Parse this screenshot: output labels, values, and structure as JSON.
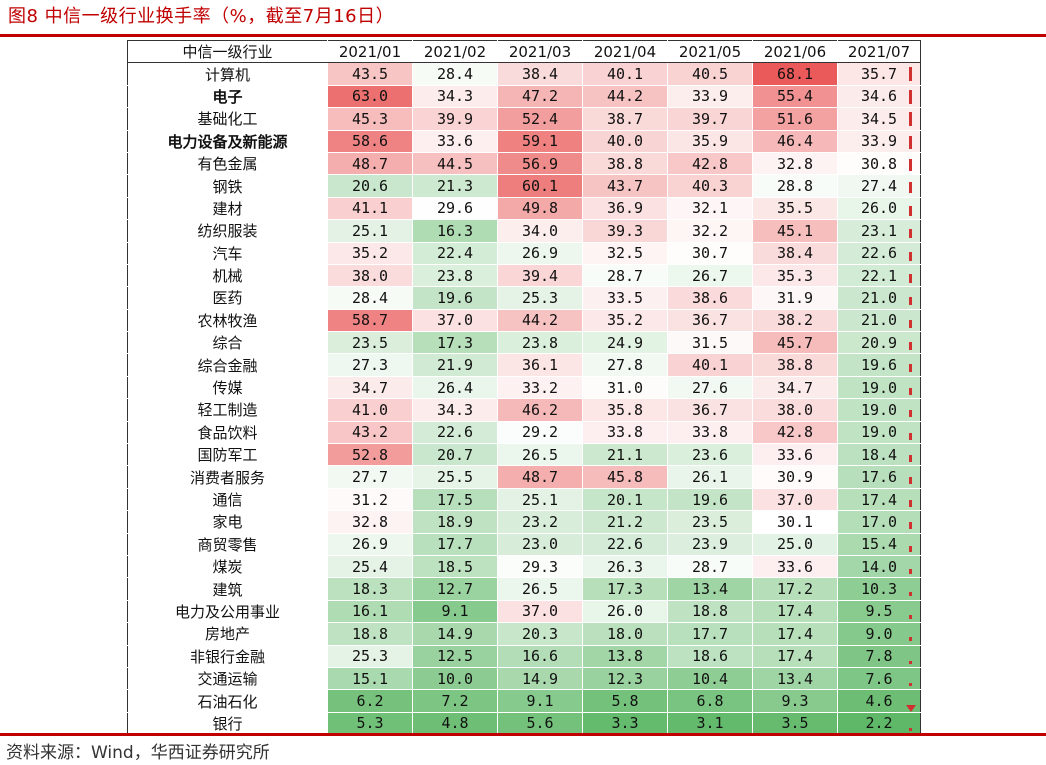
{
  "header": {
    "title": "图8 中信一级行业换手率（%，截至7月16日）"
  },
  "footer": {
    "source": "资料来源：Wind，华西证券研究所"
  },
  "colors": {
    "accent": "#c00000",
    "high": "#ea5a5a",
    "mid": "#ffffff",
    "low": "#5fb867",
    "bar": "#d03030"
  },
  "chart_data": {
    "type": "heatmap",
    "title": "图8 中信一级行业换手率（%，截至7月16日）",
    "row_header": "中信一级行业",
    "columns": [
      "2021/01",
      "2021/02",
      "2021/03",
      "2021/04",
      "2021/05",
      "2021/06",
      "2021/07"
    ],
    "rows": [
      {
        "name": "计算机",
        "bold": false,
        "values": [
          43.5,
          28.4,
          38.4,
          40.1,
          40.5,
          68.1,
          35.7
        ]
      },
      {
        "name": "电子",
        "bold": true,
        "values": [
          63.0,
          34.3,
          47.2,
          44.2,
          33.9,
          55.4,
          34.6
        ]
      },
      {
        "name": "基础化工",
        "bold": false,
        "values": [
          45.3,
          39.9,
          52.4,
          38.7,
          39.7,
          51.6,
          34.5
        ]
      },
      {
        "name": "电力设备及新能源",
        "bold": true,
        "values": [
          58.6,
          33.6,
          59.1,
          40.0,
          35.9,
          46.4,
          33.9
        ]
      },
      {
        "name": "有色金属",
        "bold": false,
        "values": [
          48.7,
          44.5,
          56.9,
          38.8,
          42.8,
          32.8,
          30.8
        ]
      },
      {
        "name": "钢铁",
        "bold": false,
        "values": [
          20.6,
          21.3,
          60.1,
          43.7,
          40.3,
          28.8,
          27.4
        ]
      },
      {
        "name": "建材",
        "bold": false,
        "values": [
          41.1,
          29.6,
          49.8,
          36.9,
          32.1,
          35.5,
          26.0
        ]
      },
      {
        "name": "纺织服装",
        "bold": false,
        "values": [
          25.1,
          16.3,
          34.0,
          39.3,
          32.2,
          45.1,
          23.1
        ]
      },
      {
        "name": "汽车",
        "bold": false,
        "values": [
          35.2,
          22.4,
          26.9,
          32.5,
          30.7,
          38.4,
          22.6
        ]
      },
      {
        "name": "机械",
        "bold": false,
        "values": [
          38.0,
          23.8,
          39.4,
          28.7,
          26.7,
          35.3,
          22.1
        ]
      },
      {
        "name": "医药",
        "bold": false,
        "values": [
          28.4,
          19.6,
          25.3,
          33.5,
          38.6,
          31.9,
          21.0
        ]
      },
      {
        "name": "农林牧渔",
        "bold": false,
        "values": [
          58.7,
          37.0,
          44.2,
          35.2,
          36.7,
          38.2,
          21.0
        ]
      },
      {
        "name": "综合",
        "bold": false,
        "values": [
          23.5,
          17.3,
          23.8,
          24.9,
          31.5,
          45.7,
          20.9
        ]
      },
      {
        "name": "综合金融",
        "bold": false,
        "values": [
          27.3,
          21.9,
          36.1,
          27.8,
          40.1,
          38.8,
          19.6
        ]
      },
      {
        "name": "传媒",
        "bold": false,
        "values": [
          34.7,
          26.4,
          33.2,
          31.0,
          27.6,
          34.7,
          19.0
        ]
      },
      {
        "name": "轻工制造",
        "bold": false,
        "values": [
          41.0,
          34.3,
          46.2,
          35.8,
          36.7,
          38.0,
          19.0
        ]
      },
      {
        "name": "食品饮料",
        "bold": false,
        "values": [
          43.2,
          22.6,
          29.2,
          33.8,
          33.8,
          42.8,
          19.0
        ]
      },
      {
        "name": "国防军工",
        "bold": false,
        "values": [
          52.8,
          20.7,
          26.5,
          21.1,
          23.6,
          33.6,
          18.4
        ]
      },
      {
        "name": "消费者服务",
        "bold": false,
        "values": [
          27.7,
          25.5,
          48.7,
          45.8,
          26.1,
          30.9,
          17.6
        ]
      },
      {
        "name": "通信",
        "bold": false,
        "values": [
          31.2,
          17.5,
          25.1,
          20.1,
          19.6,
          37.0,
          17.4
        ]
      },
      {
        "name": "家电",
        "bold": false,
        "values": [
          32.8,
          18.9,
          23.2,
          21.2,
          23.5,
          30.1,
          17.0
        ]
      },
      {
        "name": "商贸零售",
        "bold": false,
        "values": [
          26.9,
          17.7,
          23.0,
          22.6,
          23.9,
          25.0,
          15.4
        ]
      },
      {
        "name": "煤炭",
        "bold": false,
        "values": [
          25.4,
          18.5,
          29.3,
          26.3,
          28.7,
          33.6,
          14.0
        ]
      },
      {
        "name": "建筑",
        "bold": false,
        "values": [
          18.3,
          12.7,
          26.5,
          17.3,
          13.4,
          17.2,
          10.3
        ]
      },
      {
        "name": "电力及公用事业",
        "bold": false,
        "values": [
          16.1,
          9.1,
          37.0,
          26.0,
          18.8,
          17.4,
          9.5
        ]
      },
      {
        "name": "房地产",
        "bold": false,
        "values": [
          18.8,
          14.9,
          20.3,
          18.0,
          17.7,
          17.4,
          9.0
        ]
      },
      {
        "name": "非银行金融",
        "bold": false,
        "values": [
          25.3,
          12.5,
          16.6,
          13.8,
          18.6,
          17.4,
          7.8
        ]
      },
      {
        "name": "交通运输",
        "bold": false,
        "values": [
          15.1,
          10.0,
          14.9,
          12.3,
          10.4,
          13.4,
          7.6
        ]
      },
      {
        "name": "石油石化",
        "bold": false,
        "values": [
          6.2,
          7.2,
          9.1,
          5.8,
          6.8,
          9.3,
          4.6
        ]
      },
      {
        "name": "银行",
        "bold": false,
        "values": [
          5.3,
          4.8,
          5.6,
          3.3,
          3.1,
          3.5,
          2.2
        ]
      }
    ],
    "color_scale": {
      "min": 2.2,
      "mid": 30.0,
      "max": 68.1
    }
  }
}
